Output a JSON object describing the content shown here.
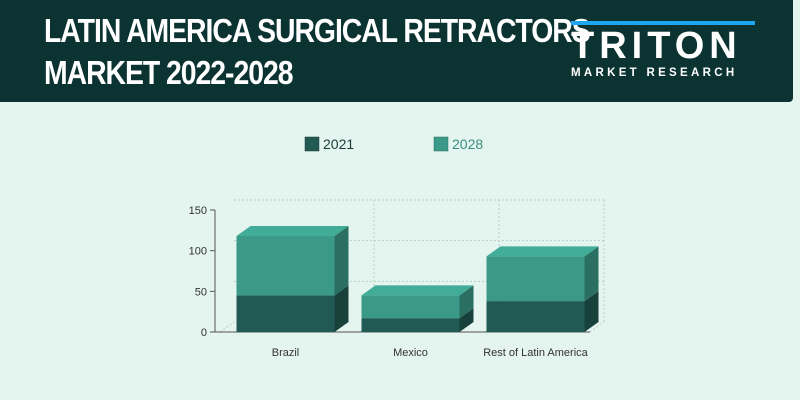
{
  "header": {
    "title_line1": "LATIN AMERICA SURGICAL RETRACTORS",
    "title_line2": "MARKET 2022-2028",
    "logo_word": "TRITON",
    "logo_sub": "MARKET RESEARCH"
  },
  "colors": {
    "banner": "#0b3331",
    "background": "#e4f4ef",
    "series_2021": "#215a54",
    "series_2028": "#3a9a87",
    "logo_accent": "#1ea6f0"
  },
  "chart_data": {
    "type": "bar",
    "stacked": true,
    "three_d": true,
    "categories": [
      "Brazil",
      "Mexico",
      "Rest of Latin America"
    ],
    "series": [
      {
        "name": "2021",
        "values": [
          45,
          17,
          38
        ]
      },
      {
        "name": "2028",
        "values": [
          73,
          28,
          55
        ]
      }
    ],
    "ylim": [
      0,
      150
    ],
    "yticks": [
      0,
      50,
      100,
      150
    ],
    "legend": "top",
    "grid": true
  }
}
